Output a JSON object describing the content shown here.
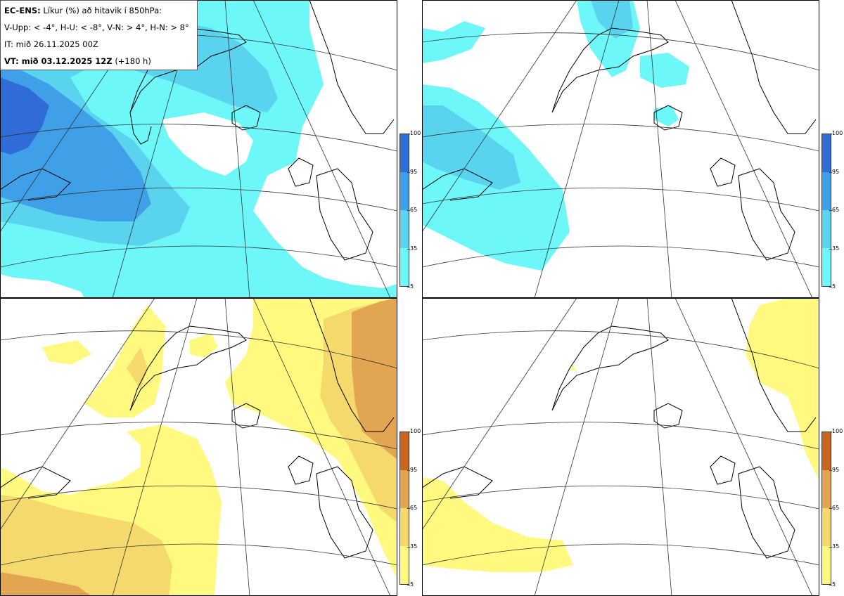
{
  "header": {
    "product": "EC-ENS:",
    "description": "Líkur (%) að hitavik í 850hPa:",
    "criteria": "V-Upp: < -4°, H-U: < -8°, V-N: > 4°, H-N: > 8°",
    "init_time": "IT: mið 26.11.2025 00Z",
    "valid_label": "VT: mið 03.12.2025 12Z",
    "lead": "(+180 h)"
  },
  "panels": [
    {
      "id": "tl",
      "threshold": "< -4°",
      "palette": "blue"
    },
    {
      "id": "tr",
      "threshold": "< -8°",
      "palette": "blue"
    },
    {
      "id": "bl",
      "threshold": "> 4°",
      "palette": "yellow"
    },
    {
      "id": "br",
      "threshold": "> 8°",
      "palette": "yellow"
    }
  ],
  "legend": {
    "ticks": [
      "5",
      "35",
      "65",
      "95",
      "100"
    ],
    "blue_colors": [
      "#6ef7f9",
      "#5ad3ef",
      "#3f9fe7",
      "#2f6cd8"
    ],
    "yellow_colors": [
      "#fffa7f",
      "#f5d96c",
      "#e2a551",
      "#c8661f"
    ]
  }
}
